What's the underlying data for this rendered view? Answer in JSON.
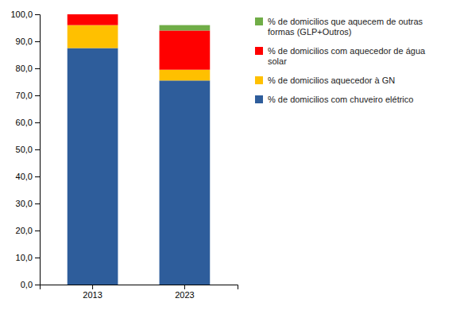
{
  "chart_data": {
    "type": "bar",
    "stacked": true,
    "categories": [
      "2013",
      "2023"
    ],
    "series": [
      {
        "name": "% de domicilios com chuveiro elétrico",
        "color": "#2E5D9B",
        "values": [
          87.5,
          75.5
        ]
      },
      {
        "name": "% de domicilios aquecedor à GN",
        "color": "#FFC000",
        "values": [
          8.5,
          4.0
        ]
      },
      {
        "name": "% de domicilios com aquecedor de água\nsolar",
        "color": "#FF0000",
        "values": [
          4.0,
          14.5
        ]
      },
      {
        "name": "% de domicilios que aquecem de outras\nformas (GLP+Outros)",
        "color": "#70AD47",
        "values": [
          0.0,
          2.0
        ]
      }
    ],
    "ylim": [
      0,
      100
    ],
    "yticks": [
      {
        "value": 0,
        "label": "0,0"
      },
      {
        "value": 10,
        "label": "10,0"
      },
      {
        "value": 20,
        "label": "20,0"
      },
      {
        "value": 30,
        "label": "30,0"
      },
      {
        "value": 40,
        "label": "40,0"
      },
      {
        "value": 50,
        "label": "50,0"
      },
      {
        "value": 60,
        "label": "60,0"
      },
      {
        "value": 70,
        "label": "70,0"
      },
      {
        "value": 80,
        "label": "80,0"
      },
      {
        "value": 90,
        "label": "90,0"
      },
      {
        "value": 100,
        "label": "100,0"
      }
    ],
    "grid": false,
    "legend": "right"
  }
}
